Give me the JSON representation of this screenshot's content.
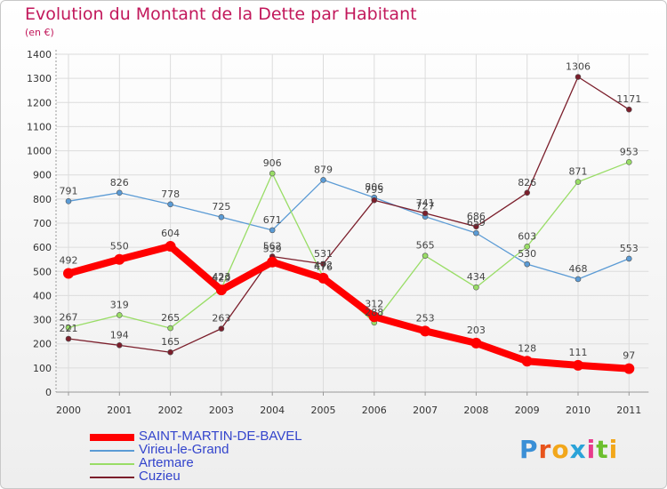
{
  "title": "Evolution du Montant de la Dette par Habitant",
  "subtitle": "(en €)",
  "logo": "Proxiti",
  "chart_data": {
    "type": "line",
    "title": "Evolution du Montant de la Dette par Habitant",
    "subtitle": "(en €)",
    "xlabel": "",
    "ylabel": "",
    "ylim": [
      0,
      1400
    ],
    "yticks": [
      0,
      100,
      200,
      300,
      400,
      500,
      600,
      700,
      800,
      900,
      1000,
      1100,
      1200,
      1300,
      1400
    ],
    "categories": [
      "2000",
      "2001",
      "2002",
      "2003",
      "2004",
      "2005",
      "2006",
      "2007",
      "2008",
      "2009",
      "2010",
      "2011"
    ],
    "grid": true,
    "legend_position": "bottom-left",
    "series": [
      {
        "name": "SAINT-MARTIN-DE-BAVEL",
        "color": "#ff0000",
        "values": [
          492,
          550,
          604,
          423,
          539,
          472,
          312,
          253,
          203,
          128,
          111,
          97
        ]
      },
      {
        "name": "Virieu-le-Grand",
        "color": "#5b9bd5",
        "values": [
          791,
          826,
          778,
          725,
          671,
          879,
          806,
          727,
          659,
          530,
          468,
          553
        ]
      },
      {
        "name": "Artemare",
        "color": "#99dd66",
        "values": [
          267,
          319,
          265,
          429,
          906,
          476,
          288,
          565,
          434,
          603,
          871,
          953
        ]
      },
      {
        "name": "Cuzieu",
        "color": "#7b1e2b",
        "values": [
          221,
          194,
          165,
          263,
          562,
          531,
          795,
          741,
          686,
          826,
          1306,
          1171
        ]
      }
    ]
  }
}
